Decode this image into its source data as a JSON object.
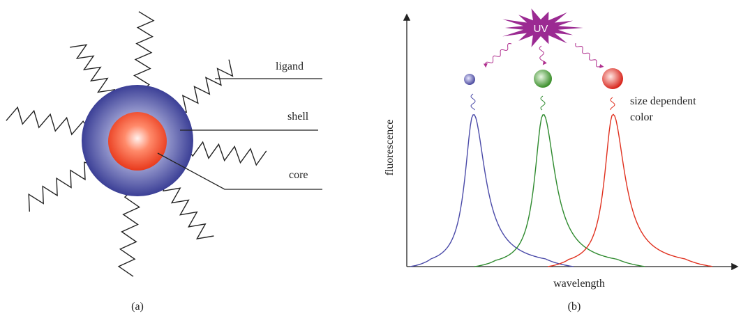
{
  "panel_a": {
    "labels": {
      "ligand": "ligand",
      "shell": "shell",
      "core": "core"
    },
    "caption": "(a)"
  },
  "panel_b": {
    "excitation": "UV",
    "annotation": [
      "size dependent",
      "color"
    ],
    "y_axis_label": "fluorescence",
    "x_axis_label": "wavelength",
    "caption": "(b)"
  }
}
